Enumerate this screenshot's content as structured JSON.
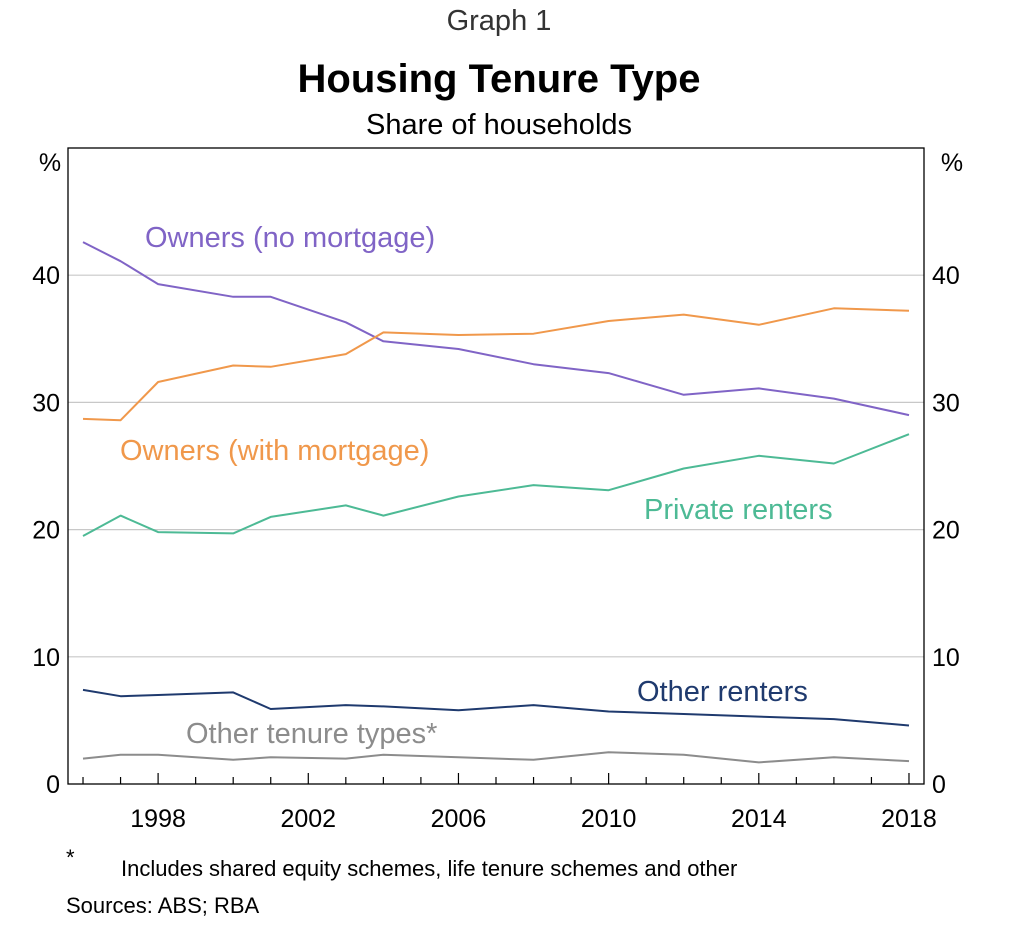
{
  "chart_data": {
    "type": "line",
    "graph_number": "Graph 1",
    "title": "Housing Tenure Type",
    "subtitle": "Share of households",
    "y_unit_left": "%",
    "y_unit_right": "%",
    "ylim": [
      0,
      50
    ],
    "y_ticks": [
      0,
      10,
      20,
      30,
      40
    ],
    "y_tick_labels": [
      "0",
      "10",
      "20",
      "30",
      "40"
    ],
    "xlim": [
      1995.6,
      2018.4
    ],
    "x_tick_labels": [
      "1998",
      "2002",
      "2006",
      "2010",
      "2014",
      "2018"
    ],
    "x_ticks": [
      1998,
      2002,
      2006,
      2010,
      2014,
      2018
    ],
    "x_minor_ticks": [
      1996,
      1997,
      1998,
      1999,
      2000,
      2001,
      2002,
      2003,
      2004,
      2005,
      2006,
      2007,
      2008,
      2009,
      2010,
      2011,
      2012,
      2013,
      2014,
      2015,
      2016,
      2017,
      2018
    ],
    "grid": true,
    "series": [
      {
        "name": "Owners (no mortgage)",
        "color": "#8064c6",
        "x": [
          1996,
          1997,
          1998,
          2000,
          2001,
          2003,
          2004,
          2006,
          2008,
          2010,
          2012,
          2014,
          2016,
          2018
        ],
        "values": [
          42.6,
          41.1,
          39.3,
          38.3,
          38.3,
          36.3,
          34.8,
          34.2,
          33.0,
          32.3,
          30.6,
          31.1,
          30.3,
          29.0
        ]
      },
      {
        "name": "Owners (with mortgage)",
        "color": "#f0984b",
        "x": [
          1996,
          1997,
          1998,
          2000,
          2001,
          2003,
          2004,
          2006,
          2008,
          2010,
          2012,
          2014,
          2016,
          2018
        ],
        "values": [
          28.7,
          28.6,
          31.6,
          32.9,
          32.8,
          33.8,
          35.5,
          35.3,
          35.4,
          36.4,
          36.9,
          36.1,
          37.4,
          37.2
        ]
      },
      {
        "name": "Private renters",
        "color": "#4dba95",
        "x": [
          1996,
          1997,
          1998,
          2000,
          2001,
          2003,
          2004,
          2006,
          2008,
          2010,
          2012,
          2014,
          2016,
          2018
        ],
        "values": [
          19.5,
          21.1,
          19.8,
          19.7,
          21.0,
          21.9,
          21.1,
          22.6,
          23.5,
          23.1,
          24.8,
          25.8,
          25.2,
          27.5
        ]
      },
      {
        "name": "Other renters",
        "color": "#1f3a6e",
        "x": [
          1996,
          1997,
          1998,
          2000,
          2001,
          2003,
          2004,
          2006,
          2008,
          2010,
          2012,
          2014,
          2016,
          2018
        ],
        "values": [
          7.4,
          6.9,
          7.0,
          7.2,
          5.9,
          6.2,
          6.1,
          5.8,
          6.2,
          5.7,
          5.5,
          5.3,
          5.1,
          4.6
        ]
      },
      {
        "name": "Other tenure types*",
        "color": "#8c8c8c",
        "x": [
          1996,
          1997,
          1998,
          2000,
          2001,
          2003,
          2004,
          2006,
          2008,
          2010,
          2012,
          2014,
          2016,
          2018
        ],
        "values": [
          2.0,
          2.3,
          2.3,
          1.9,
          2.1,
          2.0,
          2.3,
          2.1,
          1.9,
          2.5,
          2.3,
          1.7,
          2.1,
          1.8
        ]
      }
    ],
    "footnote_marker": "*",
    "footnote_text": "Includes shared equity schemes, life tenure schemes and other",
    "sources": "Sources: ABS; RBA"
  }
}
